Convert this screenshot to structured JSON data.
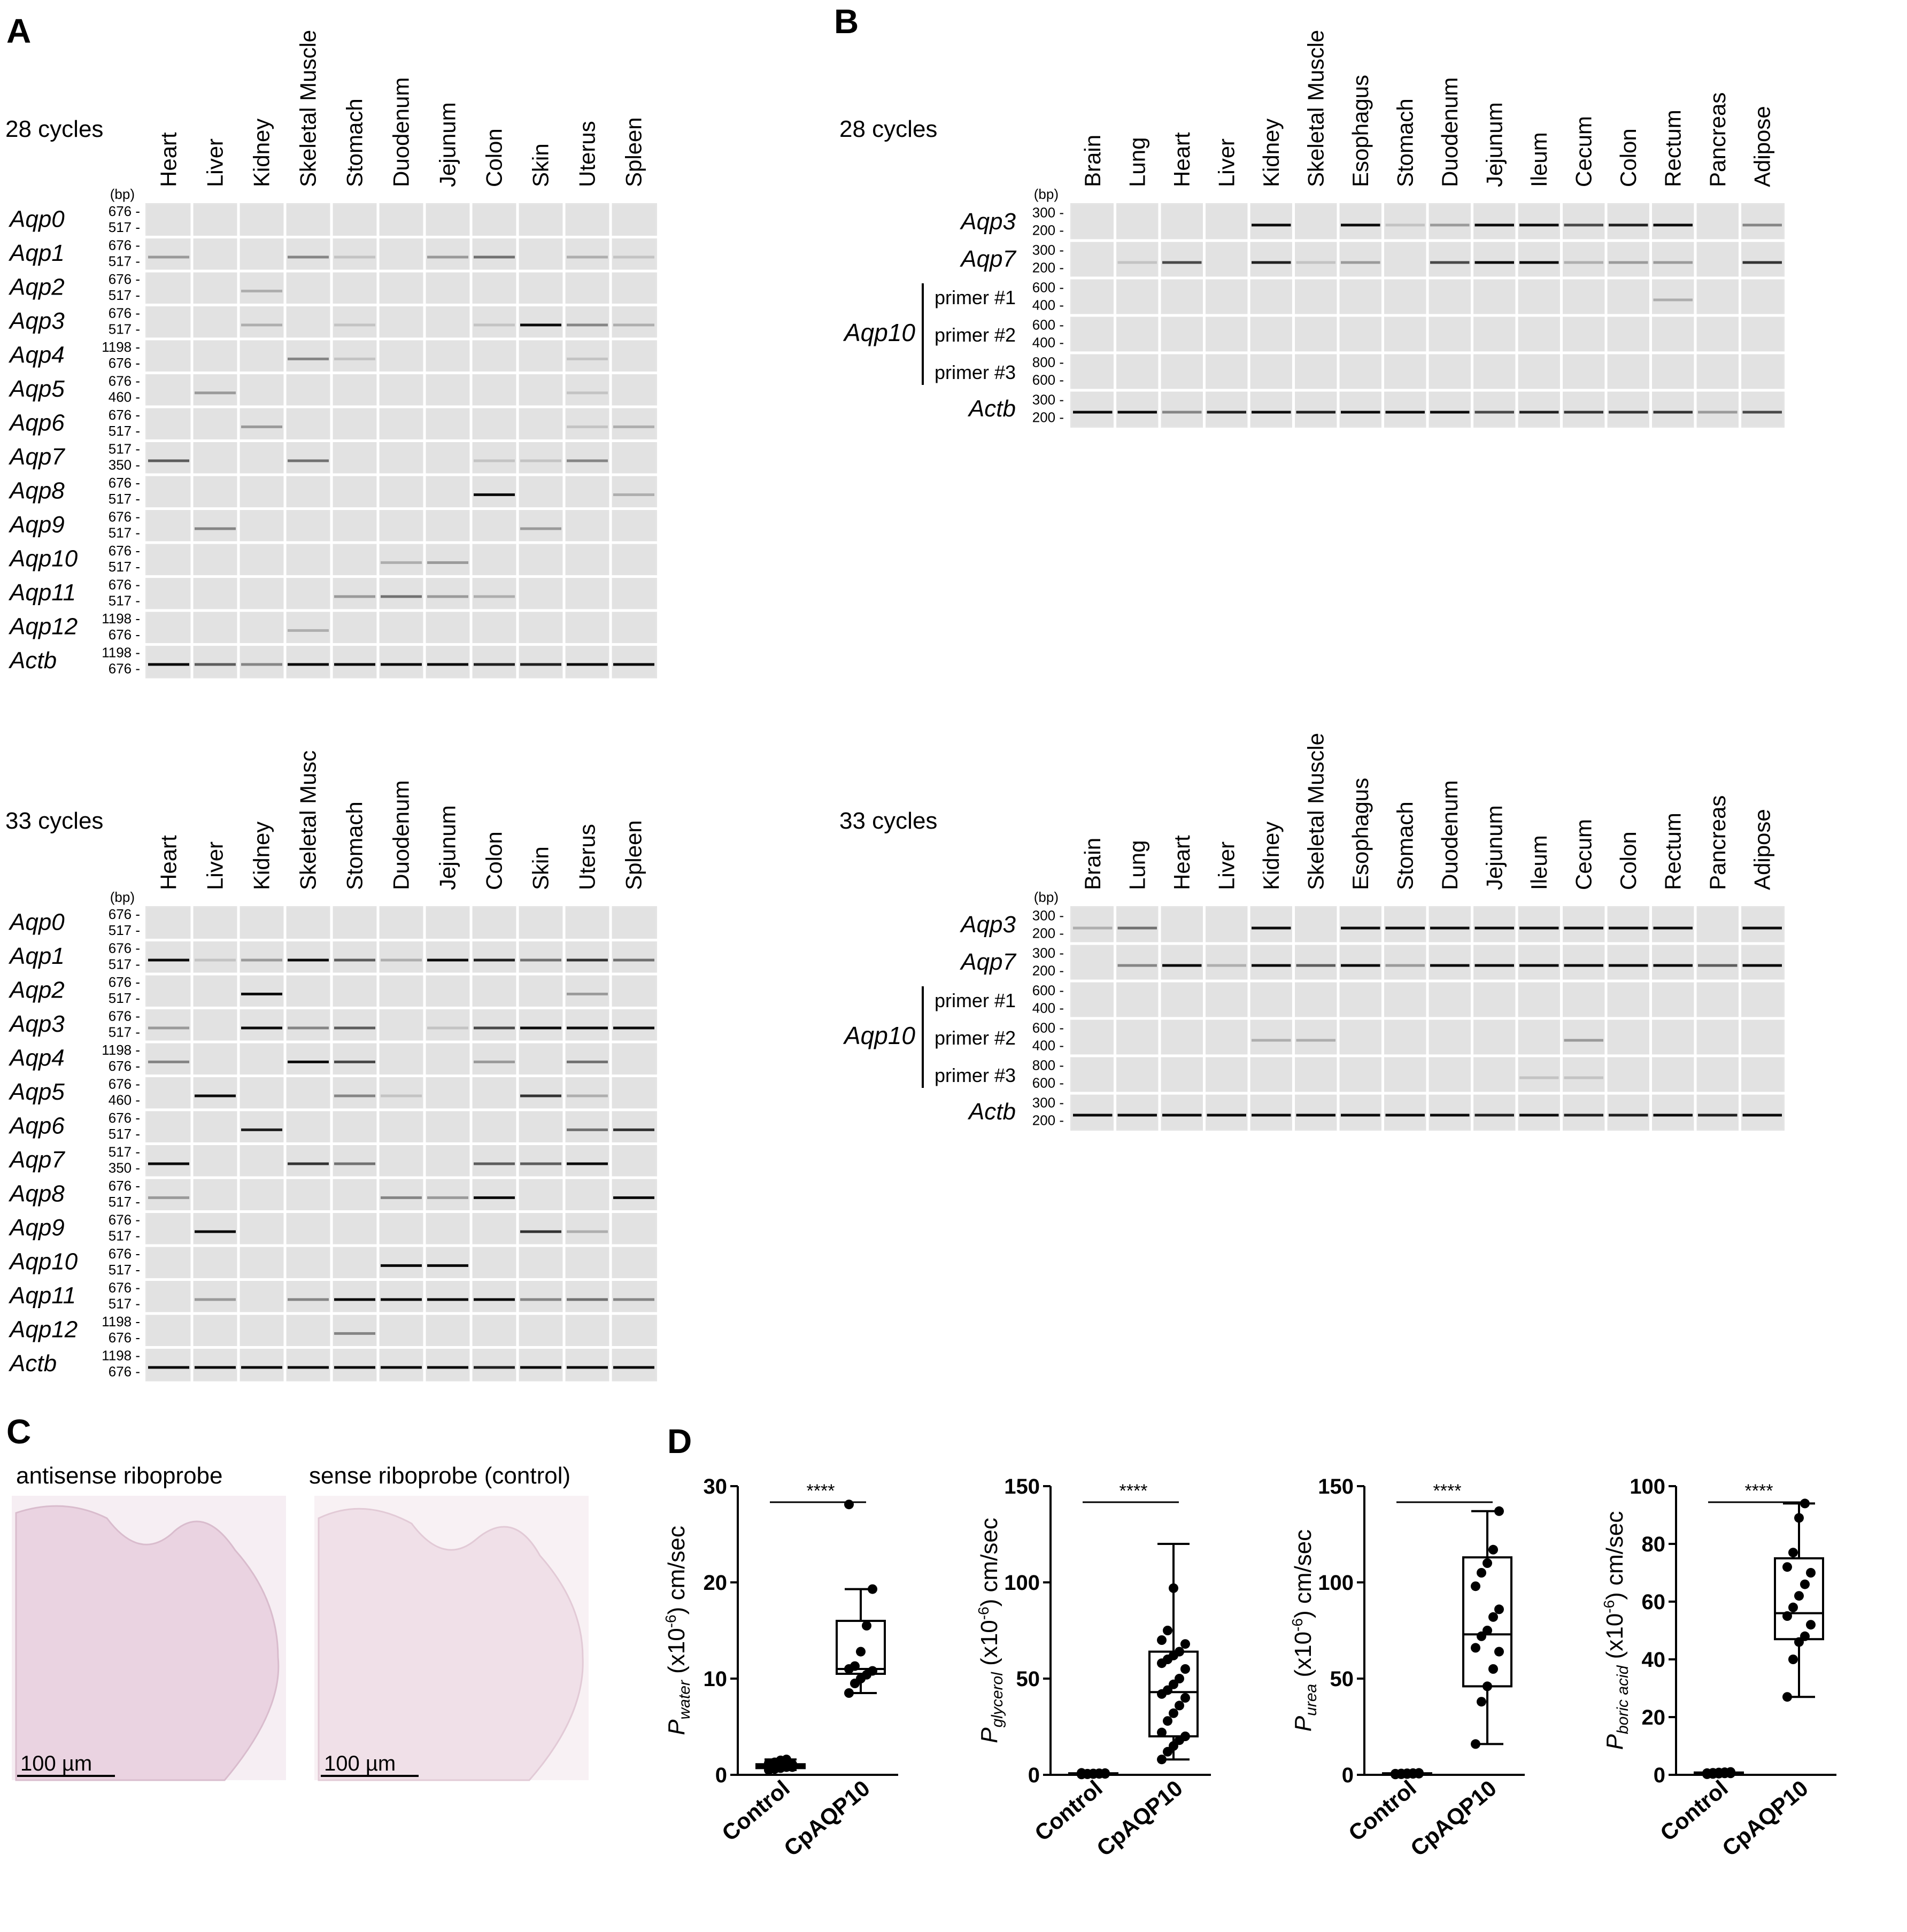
{
  "panels": {
    "A": "A",
    "B": "B",
    "C": "C",
    "D": "D"
  },
  "bp_unit": "(bp)",
  "panel_a": {
    "tissues": [
      "Heart",
      "Liver",
      "Kidney",
      "Skeletal Muscle",
      "Stomach",
      "Duodenum",
      "Jejunum",
      "Colon",
      "Skin",
      "Uterus",
      "Spleen"
    ],
    "tissues_33": [
      "Heart",
      "Liver",
      "Kidney",
      "Skeletal Musc",
      "Stomach",
      "Duodenum",
      "Jejunum",
      "Colon",
      "Skin",
      "Uterus",
      "Spleen"
    ],
    "genes": [
      {
        "name": "Aqp0",
        "markers": [
          "676 -",
          "517 -"
        ]
      },
      {
        "name": "Aqp1",
        "markers": [
          "676 -",
          "517 -"
        ]
      },
      {
        "name": "Aqp2",
        "markers": [
          "676 -",
          "517 -"
        ]
      },
      {
        "name": "Aqp3",
        "markers": [
          "676 -",
          "517 -"
        ]
      },
      {
        "name": "Aqp4",
        "markers": [
          "1198 -",
          "676 -"
        ]
      },
      {
        "name": "Aqp5",
        "markers": [
          "676 -",
          "460 -"
        ]
      },
      {
        "name": "Aqp6",
        "markers": [
          "676 -",
          "517 -"
        ]
      },
      {
        "name": "Aqp7",
        "markers": [
          "517 -",
          "350 -"
        ]
      },
      {
        "name": "Aqp8",
        "markers": [
          "676 -",
          "517 -"
        ]
      },
      {
        "name": "Aqp9",
        "markers": [
          "676 -",
          "517 -"
        ]
      },
      {
        "name": "Aqp10",
        "markers": [
          "676 -",
          "517 -"
        ]
      },
      {
        "name": "Aqp11",
        "markers": [
          "676 -",
          "517 -"
        ]
      },
      {
        "name": "Aqp12",
        "markers": [
          "1198 -",
          "676 -"
        ]
      },
      {
        "name": "Actb",
        "markers": [
          "1198 -",
          "676 -"
        ]
      }
    ],
    "cycles_28": "28 cycles",
    "cycles_33": "33 cycles"
  },
  "panel_b": {
    "tissues": [
      "Brain",
      "Lung",
      "Heart",
      "Liver",
      "Kidney",
      "Skeletal Muscle",
      "Esophagus",
      "Stomach",
      "Duodenum",
      "Jejunum",
      "Ileum",
      "Cecum",
      "Colon",
      "Rectum",
      "Pancreas",
      "Adipose"
    ],
    "rows": [
      {
        "label": "Aqp3",
        "markers": [
          "300 -",
          "200 -"
        ]
      },
      {
        "label": "Aqp7",
        "markers": [
          "300 -",
          "200 -"
        ]
      },
      {
        "label": "primer #1",
        "markers": [
          "600 -",
          "400 -"
        ]
      },
      {
        "label": "primer #2",
        "markers": [
          "600 -",
          "400 -"
        ]
      },
      {
        "label": "primer #3",
        "markers": [
          "800 -",
          "600 -"
        ]
      },
      {
        "label": "Actb",
        "markers": [
          "300 -",
          "200 -"
        ]
      }
    ],
    "group_label": "Aqp10",
    "cycles_28": "28 cycles",
    "cycles_33": "33 cycles"
  },
  "panel_c": {
    "left_caption": "antisense riboprobe",
    "right_caption": "sense riboprobe (control)",
    "scale_bar": "100 µm"
  },
  "panel_d": {
    "significance": "****",
    "categories": [
      "Control",
      "CpAQP10"
    ],
    "ylabel_suffix": " (x10",
    "ylabel_exp": "-6",
    "ylabel_unit": ") cm/sec",
    "p_symbol": "P"
  },
  "chart_data": [
    {
      "type": "box",
      "ylabel_sub": "water",
      "categories": [
        "Control",
        "CpAQP10"
      ],
      "ylim": [
        0,
        30
      ],
      "yticks": [
        0,
        10,
        20,
        30
      ],
      "series": [
        {
          "name": "Control",
          "min": 0.5,
          "q1": 0.7,
          "median": 0.9,
          "q3": 1.1,
          "max": 1.6,
          "points": [
            0.5,
            0.6,
            0.7,
            0.8,
            0.8,
            0.9,
            0.9,
            1.0,
            1.0,
            1.1,
            1.2,
            1.3,
            1.5,
            1.6
          ]
        },
        {
          "name": "CpAQP10",
          "min": 8.5,
          "q1": 10.5,
          "median": 11.0,
          "q3": 16.0,
          "max": 19.3,
          "points": [
            8.5,
            9.5,
            10.0,
            10.4,
            10.8,
            11.0,
            11.3,
            12.8,
            15.5,
            19.3,
            28.1
          ]
        }
      ]
    },
    {
      "type": "box",
      "ylabel_sub": "glycerol",
      "categories": [
        "Control",
        "CpAQP10"
      ],
      "ylim": [
        0,
        150
      ],
      "yticks": [
        0,
        50,
        100,
        150
      ],
      "series": [
        {
          "name": "Control",
          "min": 0.2,
          "q1": 0.4,
          "median": 0.6,
          "q3": 0.8,
          "max": 1.0,
          "points": [
            0.2,
            0.3,
            0.4,
            0.5,
            0.5,
            0.6,
            0.6,
            0.7,
            0.8,
            0.9,
            1.0
          ]
        },
        {
          "name": "CpAQP10",
          "min": 8,
          "q1": 20,
          "median": 43,
          "q3": 64,
          "max": 120,
          "points": [
            8,
            12,
            15,
            18,
            20,
            22,
            28,
            32,
            36,
            40,
            42,
            44,
            47,
            50,
            55,
            58,
            60,
            62,
            64,
            68,
            70,
            75,
            97
          ]
        }
      ]
    },
    {
      "type": "box",
      "ylabel_sub": "urea",
      "categories": [
        "Control",
        "CpAQP10"
      ],
      "ylim": [
        0,
        150
      ],
      "yticks": [
        0,
        50,
        100,
        150
      ],
      "series": [
        {
          "name": "Control",
          "min": 0.2,
          "q1": 0.4,
          "median": 0.6,
          "q3": 0.8,
          "max": 1.0,
          "points": [
            0.2,
            0.3,
            0.4,
            0.5,
            0.6,
            0.6,
            0.7,
            0.8,
            0.9,
            1.0
          ]
        },
        {
          "name": "CpAQP10",
          "min": 16,
          "q1": 46,
          "median": 73,
          "q3": 113,
          "max": 137,
          "points": [
            16,
            38,
            46,
            55,
            64,
            66,
            72,
            75,
            82,
            86,
            98,
            105,
            110,
            117,
            137
          ]
        }
      ]
    },
    {
      "type": "box",
      "ylabel_sub": "boric acid",
      "categories": [
        "Control",
        "CpAQP10"
      ],
      "ylim": [
        0,
        100
      ],
      "yticks": [
        0,
        20,
        40,
        60,
        80,
        100
      ],
      "series": [
        {
          "name": "Control",
          "min": 0.2,
          "q1": 0.3,
          "median": 0.5,
          "q3": 0.8,
          "max": 1.0,
          "points": [
            0.2,
            0.3,
            0.4,
            0.5,
            0.5,
            0.6,
            0.7,
            0.8,
            0.9,
            1.0
          ]
        },
        {
          "name": "CpAQP10",
          "min": 27,
          "q1": 47,
          "median": 56,
          "q3": 75,
          "max": 94,
          "points": [
            27,
            40,
            46,
            48,
            52,
            55,
            58,
            62,
            66,
            70,
            72,
            77,
            89,
            94
          ]
        }
      ]
    }
  ]
}
